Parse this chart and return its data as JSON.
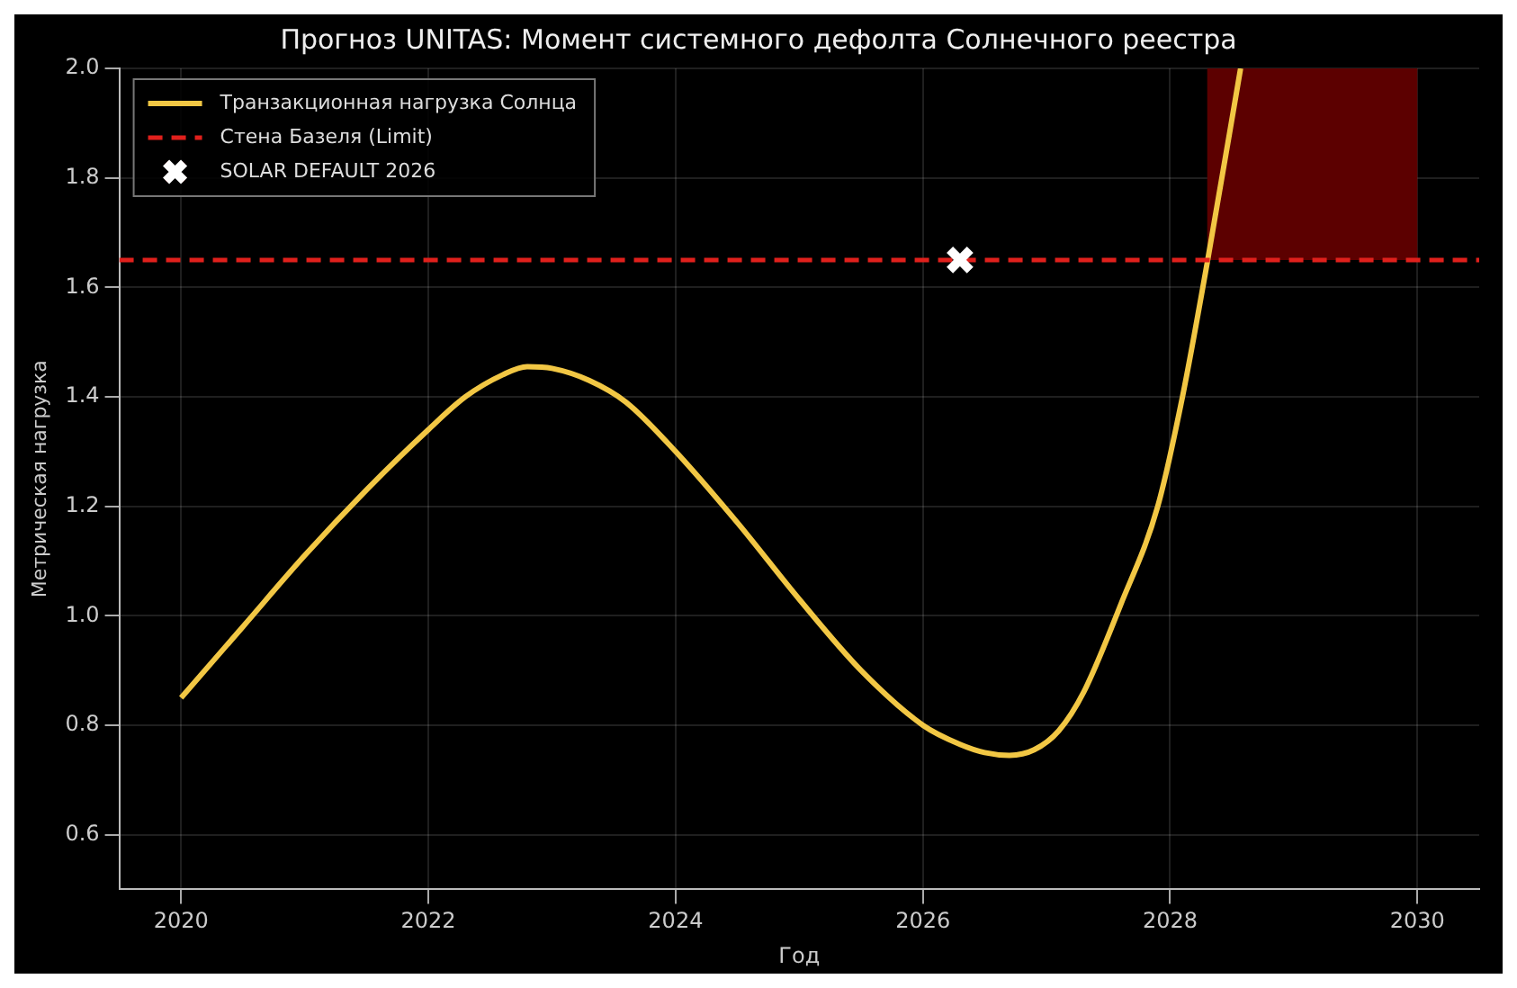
{
  "chart_data": {
    "type": "line",
    "title": "Прогноз UNITAS: Момент системного дефолта Солнечного реестра",
    "xlabel": "Год",
    "ylabel": "Метрическая нагрузка",
    "series": [
      {
        "name": "Транзакционная нагрузка Солнца",
        "color": "#f2c744",
        "x": [
          2020,
          2020.5,
          2021,
          2021.5,
          2022,
          2022.3,
          2022.6,
          2022.8,
          2023,
          2023.3,
          2023.6,
          2024,
          2024.5,
          2025,
          2025.5,
          2026,
          2026.3,
          2026.5,
          2026.7,
          2026.9,
          2027.1,
          2027.3,
          2027.6,
          2027.9,
          2028.1,
          2028.3,
          2028.57
        ],
        "values": [
          0.85,
          0.98,
          1.11,
          1.23,
          1.34,
          1.4,
          1.44,
          1.455,
          1.452,
          1.43,
          1.39,
          1.3,
          1.17,
          1.03,
          0.9,
          0.8,
          0.765,
          0.75,
          0.745,
          0.755,
          0.79,
          0.86,
          1.02,
          1.2,
          1.4,
          1.645,
          2.0
        ]
      },
      {
        "name": "SOLAR DEFAULT 2026",
        "type": "scatter",
        "color": "#ffffff",
        "marker": "cross",
        "x": [
          2026.3
        ],
        "values": [
          1.65
        ]
      }
    ],
    "ref_lines": [
      {
        "axis": "y",
        "value": 1.65,
        "label": "Стена Базеля (Limit)",
        "color": "#e0201c",
        "line_style": "dashed"
      }
    ],
    "bands": [
      {
        "axis": "x",
        "from": 2028.3,
        "to": 2030,
        "color": "#5c0000"
      }
    ],
    "xlim": [
      2019.5,
      2030.5
    ],
    "ylim": [
      0.5,
      2.0
    ],
    "xticks": [
      2020,
      2022,
      2024,
      2026,
      2028,
      2030
    ],
    "yticks": [
      0.6,
      0.8,
      {
        "value": 1,
        "label": "1.0"
      },
      1.2,
      1.4,
      1.6,
      1.8,
      {
        "value": 2,
        "label": "2.0"
      }
    ],
    "grid": true,
    "legend": "top left"
  }
}
